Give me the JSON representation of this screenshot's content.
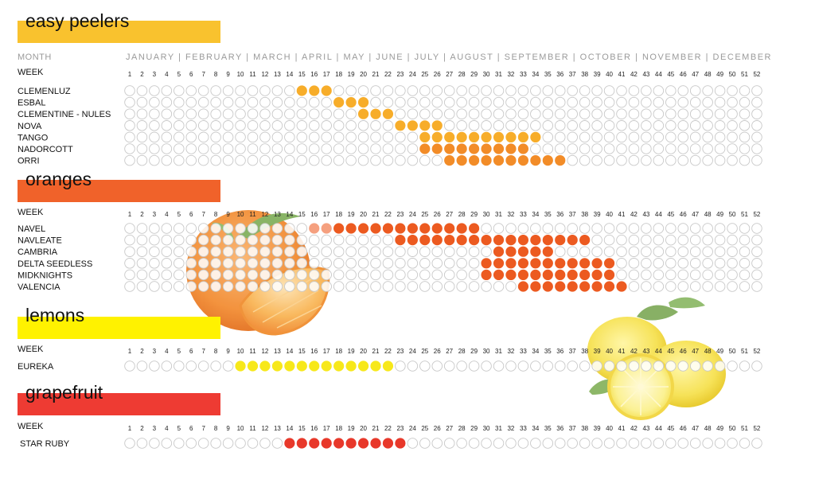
{
  "header": {
    "month_label": "MONTH",
    "months_line": "JANUARY | FEBRUARY | MARCH | APRIL | MAY | JUNE | JULY | AUGUST | SEPTEMBER | OCTOBER | NOVEMBER | DECEMBER",
    "week_label": "WEEK"
  },
  "week_numbers": [
    1,
    2,
    3,
    4,
    5,
    6,
    7,
    8,
    9,
    10,
    11,
    12,
    13,
    14,
    15,
    16,
    17,
    18,
    19,
    20,
    21,
    22,
    23,
    24,
    25,
    26,
    27,
    28,
    29,
    30,
    31,
    32,
    33,
    34,
    35,
    36,
    37,
    38,
    39,
    40,
    41,
    42,
    43,
    44,
    45,
    46,
    47,
    48,
    49,
    50,
    51,
    52
  ],
  "colors": {
    "empty_fill": "#ffffff",
    "empty_stroke": "#c8c8c8",
    "easy_band": "#f9c22e",
    "oranges_band": "#f0622a",
    "lemons_band": "#fff200",
    "grapefruit_band": "#ee3b33",
    "easy_dot": "#f7ad2a",
    "easy_dot_late": "#f28c28",
    "orange_dot": "#ec5a20",
    "orange_dot_light": "#f5a07f",
    "lemon_dot": "#f7e81a",
    "grapefruit_dot": "#e8382a"
  },
  "decorations": [
    "orange-fruit-image",
    "lemon-fruit-image"
  ],
  "chart_data": {
    "type": "heatmap",
    "x": "week",
    "weeks": [
      1,
      52
    ],
    "sections": [
      {
        "title": "easy peelers",
        "band_color": "#f9c22e",
        "show_month_row": true,
        "varieties": [
          {
            "name": "CLEMENLUZ",
            "weeks": [
              15,
              16,
              17
            ],
            "color": "#f7ad2a"
          },
          {
            "name": "ESBAL",
            "weeks": [
              18,
              19,
              20
            ],
            "color": "#f7ad2a"
          },
          {
            "name": "CLEMENTINE - NULES",
            "weeks": [
              20,
              21,
              22
            ],
            "color": "#f7ad2a"
          },
          {
            "name": "NOVA",
            "weeks": [
              23,
              24,
              25,
              26
            ],
            "color": "#f7ad2a"
          },
          {
            "name": "TANGO",
            "weeks": [
              25,
              26,
              27,
              28,
              29,
              30,
              31,
              32,
              33,
              34
            ],
            "color": "#f7ad2a"
          },
          {
            "name": "NADORCOTT",
            "weeks": [
              25,
              26,
              27,
              28,
              29,
              30,
              31,
              32,
              33
            ],
            "color": "#f28c28"
          },
          {
            "name": "ORRI",
            "weeks": [
              27,
              28,
              29,
              30,
              31,
              32,
              33,
              34,
              35,
              36
            ],
            "color": "#f28c28"
          }
        ]
      },
      {
        "title": "oranges",
        "band_color": "#f0622a",
        "show_month_row": false,
        "varieties": [
          {
            "name": "NAVEL",
            "weeks": [
              16,
              17,
              18,
              19,
              20,
              21,
              22,
              23,
              24,
              25,
              26,
              27,
              28,
              29
            ],
            "color": "#ec5a20",
            "light_weeks": [
              16,
              17
            ]
          },
          {
            "name": "NAVLEATE",
            "weeks": [
              23,
              24,
              25,
              26,
              27,
              28,
              29,
              30,
              31,
              32,
              33,
              34,
              35,
              36,
              37,
              38
            ],
            "color": "#ec5a20"
          },
          {
            "name": "CAMBRIA",
            "weeks": [
              31,
              32,
              33,
              34,
              35
            ],
            "color": "#ec5a20"
          },
          {
            "name": "DELTA SEEDLESS",
            "weeks": [
              30,
              31,
              32,
              33,
              34,
              35,
              36,
              37,
              38,
              39,
              40
            ],
            "color": "#ec5a20"
          },
          {
            "name": "MIDKNIGHTS",
            "weeks": [
              30,
              31,
              32,
              33,
              34,
              35,
              36,
              37,
              38,
              39,
              40
            ],
            "color": "#ec5a20"
          },
          {
            "name": "VALENCIA",
            "weeks": [
              33,
              34,
              35,
              36,
              37,
              38,
              39,
              40,
              41
            ],
            "color": "#ec5a20"
          }
        ]
      },
      {
        "title": "lemons",
        "band_color": "#fff200",
        "show_month_row": false,
        "varieties": [
          {
            "name": "EUREKA",
            "weeks": [
              10,
              11,
              12,
              13,
              14,
              15,
              16,
              17,
              18,
              19,
              20,
              21,
              22
            ],
            "color": "#f7e81a"
          }
        ]
      },
      {
        "title": "grapefruit",
        "band_color": "#ee3b33",
        "show_month_row": false,
        "varieties": [
          {
            "name": "STAR RUBY",
            "weeks": [
              14,
              15,
              16,
              17,
              18,
              19,
              20,
              21,
              22,
              23
            ],
            "color": "#e8382a"
          }
        ]
      }
    ]
  }
}
